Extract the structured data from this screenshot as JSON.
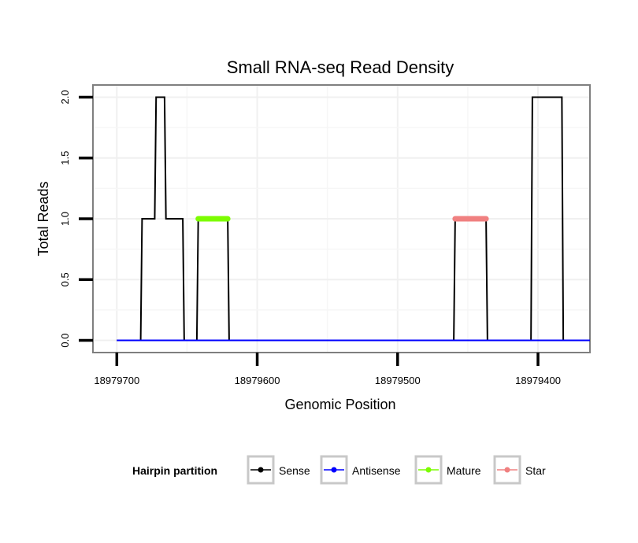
{
  "chart_data": {
    "type": "line",
    "title": "Small RNA-seq Read Density",
    "xlabel": "Genomic Position",
    "ylabel": "Total Reads",
    "x_reversed": true,
    "xlim": [
      18979717,
      18979363
    ],
    "ylim": [
      -0.1,
      2.1
    ],
    "x_ticks": [
      18979700,
      18979600,
      18979500,
      18979400
    ],
    "x_tick_labels": [
      "18979700",
      "18979600",
      "18979500",
      "18979400"
    ],
    "y_ticks": [
      0.0,
      0.5,
      1.0,
      1.5,
      2.0
    ],
    "y_tick_labels": [
      "0.0",
      "0.5",
      "1.0",
      "1.5",
      "2.0"
    ],
    "grid": true,
    "legend": {
      "position": "bottom",
      "title": "Hairpin partition",
      "entries": [
        {
          "name": "Sense",
          "color": "#000000"
        },
        {
          "name": "Antisense",
          "color": "#0000ff"
        },
        {
          "name": "Mature",
          "color": "#7cfc00"
        },
        {
          "name": "Star",
          "color": "#f08080"
        }
      ]
    },
    "series": [
      {
        "name": "Sense",
        "color": "#000000",
        "x": [
          18979700,
          18979683,
          18979682,
          18979673,
          18979672,
          18979666,
          18979665,
          18979653,
          18979652,
          18979643,
          18979642,
          18979621,
          18979620,
          18979460,
          18979459,
          18979437,
          18979436,
          18979405,
          18979404,
          18979383,
          18979382,
          18979363
        ],
        "y": [
          0,
          0,
          1,
          1,
          2,
          2,
          1,
          1,
          0,
          0,
          1,
          1,
          0,
          0,
          1,
          1,
          0,
          0,
          2,
          2,
          0,
          0
        ]
      },
      {
        "name": "Antisense",
        "color": "#0000ff",
        "x": [
          18979700,
          18979363
        ],
        "y": [
          0,
          0
        ]
      },
      {
        "name": "Mature",
        "color": "#7cfc00",
        "x": [
          18979642,
          18979621
        ],
        "y": [
          1,
          1
        ]
      },
      {
        "name": "Star",
        "color": "#f08080",
        "x": [
          18979459,
          18979437
        ],
        "y": [
          1,
          1
        ]
      }
    ]
  }
}
